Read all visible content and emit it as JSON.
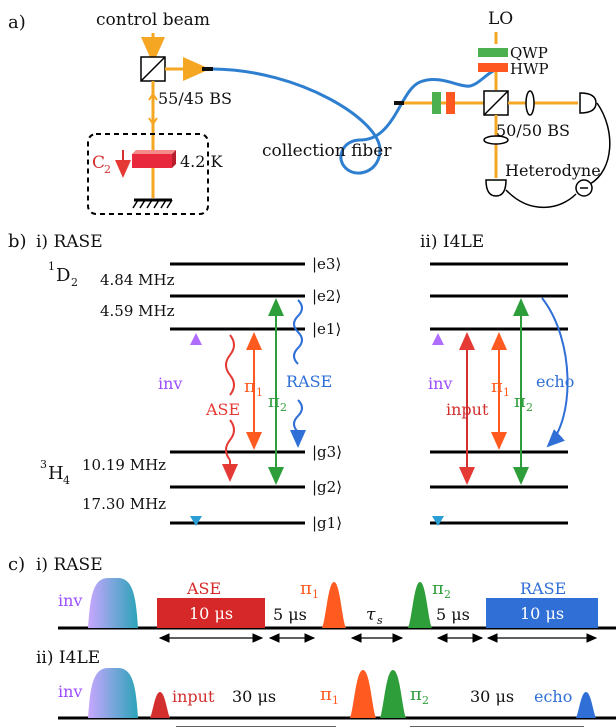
{
  "panel_a": {
    "label": "a)",
    "control_beam": "control beam",
    "lo": "LO",
    "qwp": "QWP",
    "hwp": "HWP",
    "bs_5545": "55/45 BS",
    "bs_5050": "50/50 BS",
    "collection_fiber": "collection fiber",
    "heterodyne": "Heterodyne",
    "c2": "C",
    "c2_sub": "2",
    "temp": "4.2 K",
    "colors": {
      "beam": "#f5a623",
      "fiber": "#2f7fd1",
      "qwp": "#4caf50",
      "hwp": "#ff5722",
      "crystal": "#e8283c"
    }
  },
  "panel_b": {
    "label": "b)",
    "rase_title": "i) RASE",
    "i4le_title": "ii) I4LE",
    "d2_term": "D",
    "d2_sup": "1",
    "d2_sub": "2",
    "h4_term": "H",
    "h4_sup": "3",
    "h4_sub": "4",
    "split_e32": "4.84 MHz",
    "split_e21": "4.59 MHz",
    "split_g32": "10.19 MHz",
    "split_g21": "17.30 MHz",
    "levels": [
      "|e3⟩",
      "|e2⟩",
      "|e1⟩",
      "|g3⟩",
      "|g2⟩",
      "|g1⟩"
    ],
    "inv": "inv",
    "ase": "ASE",
    "pi1": "π",
    "pi1_sub": "1",
    "pi2": "π",
    "pi2_sub": "2",
    "rase": "RASE",
    "input": "input",
    "echo": "echo",
    "colors": {
      "inv": "#9b4dff",
      "ase": "#e53935",
      "pi1": "#ff5a1f",
      "pi2": "#2e9e3a",
      "rase": "#2f6fd6",
      "input": "#d32f2f",
      "echo": "#2f6fd6"
    }
  },
  "panel_c": {
    "label": "c)",
    "rase_title": "i) RASE",
    "i4le_title": "ii) I4LE",
    "inv": "inv",
    "ase": "ASE",
    "ase_dur": "10 μs",
    "gap1": "5 μs",
    "tau": "τ",
    "tau_sub": "s",
    "gap2": "5 μs",
    "rase": "RASE",
    "rase_dur": "10 μs",
    "pi1": "π",
    "pi1_sub": "1",
    "pi2": "π",
    "pi2_sub": "2",
    "input": "input",
    "d30a": "30 μs",
    "d30b": "30 μs",
    "echo": "echo"
  }
}
